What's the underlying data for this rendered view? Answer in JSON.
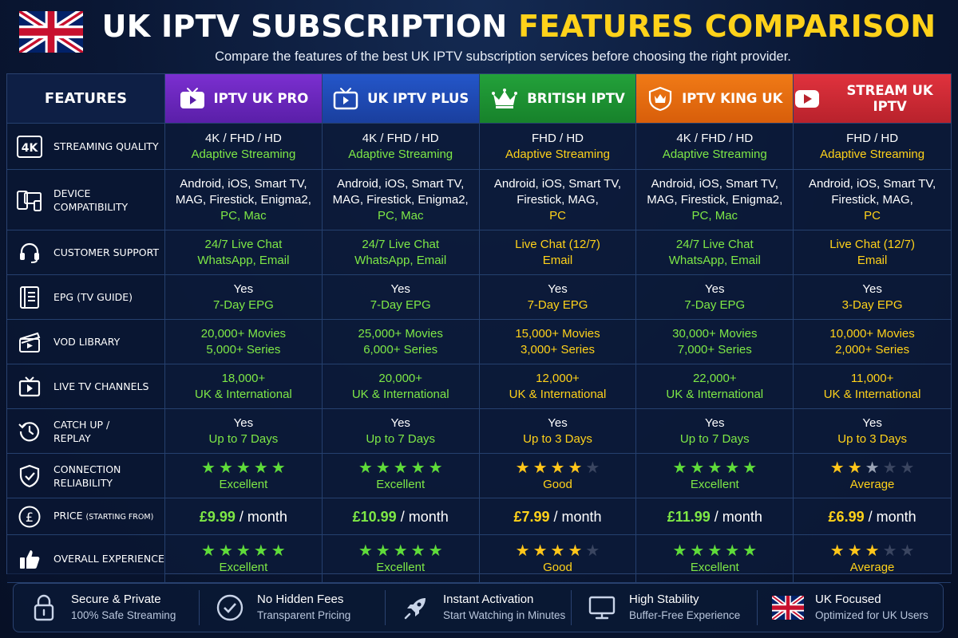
{
  "header": {
    "title_white": "UK IPTV SUBSCRIPTION ",
    "title_yellow": "FEATURES COMPARISON",
    "subtitle": "Compare the features of the best UK IPTV subscription services before choosing the right provider."
  },
  "colors": {
    "background": "#0a1734",
    "accent_yellow": "#ffd21a",
    "accent_green": "#7ee846",
    "provider_1": "#7b2fd0",
    "provider_2": "#2456c9",
    "provider_3": "#23a13a",
    "provider_4": "#f07a16",
    "provider_5": "#e0323d"
  },
  "table": {
    "features_header": "FEATURES",
    "providers": [
      {
        "name": "IPTV UK PRO",
        "icon": "tv-play-icon"
      },
      {
        "name": "UK IPTV PLUS",
        "icon": "tv-outline-play-icon"
      },
      {
        "name": "BRITISH IPTV",
        "icon": "crown-icon"
      },
      {
        "name": "IPTV KING UK",
        "icon": "crown-shield-icon"
      },
      {
        "name": "STREAM UK IPTV",
        "icon": "play-button-icon"
      }
    ],
    "features": [
      {
        "label": "STREAMING QUALITY",
        "icon": "4k-icon"
      },
      {
        "label": "DEVICE COMPATIBILITY",
        "icon": "devices-icon"
      },
      {
        "label": "CUSTOMER SUPPORT",
        "icon": "headset-icon"
      },
      {
        "label": "EPG (TV GUIDE)",
        "icon": "guide-book-icon"
      },
      {
        "label": "VOD LIBRARY",
        "icon": "clapperboard-icon"
      },
      {
        "label": "LIVE TV CHANNELS",
        "icon": "tv-icon"
      },
      {
        "label": "CATCH UP /\nREPLAY",
        "icon": "history-icon"
      },
      {
        "label": "CONNECTION\nRELIABILITY",
        "icon": "shield-check-icon"
      },
      {
        "label": "PRICE",
        "sublabel": "(STARTING FROM)",
        "icon": "pound-icon"
      },
      {
        "label": "OVERALL EXPERIENCE",
        "icon": "thumbs-up-icon"
      }
    ],
    "rows": {
      "streaming_quality": [
        {
          "l1": "4K / FHD / HD",
          "l2": "Adaptive Streaming"
        },
        {
          "l1": "4K / FHD / HD",
          "l2": "Adaptive Streaming"
        },
        {
          "l1": "FHD / HD",
          "l2": "Adaptive Streaming"
        },
        {
          "l1": "4K / FHD / HD",
          "l2": "Adaptive Streaming"
        },
        {
          "l1": "FHD / HD",
          "l2": "Adaptive Streaming"
        }
      ],
      "device_compatibility": [
        {
          "l1": "Android, iOS, Smart TV,",
          "l2": "MAG, Firestick, Enigma2,",
          "l3": "PC, Mac"
        },
        {
          "l1": "Android, iOS, Smart TV,",
          "l2": "MAG, Firestick, Enigma2,",
          "l3": "PC, Mac"
        },
        {
          "l1": "Android, iOS, Smart TV,",
          "l2": "Firestick, MAG,",
          "l3": "PC"
        },
        {
          "l1": "Android, iOS, Smart TV,",
          "l2": "MAG, Firestick, Enigma2,",
          "l3": "PC, Mac"
        },
        {
          "l1": "Android, iOS, Smart TV,",
          "l2": "Firestick, MAG,",
          "l3": "PC"
        }
      ],
      "customer_support": [
        {
          "l1": "24/7 Live Chat",
          "l2": "WhatsApp, Email"
        },
        {
          "l1": "24/7 Live Chat",
          "l2": "WhatsApp, Email"
        },
        {
          "l1": "Live Chat (12/7)",
          "l2": "Email"
        },
        {
          "l1": "24/7 Live Chat",
          "l2": "WhatsApp, Email"
        },
        {
          "l1": "Live Chat (12/7)",
          "l2": "Email"
        }
      ],
      "epg": [
        {
          "l1": "Yes",
          "l2": "7-Day EPG"
        },
        {
          "l1": "Yes",
          "l2": "7-Day EPG"
        },
        {
          "l1": "Yes",
          "l2": "7-Day EPG"
        },
        {
          "l1": "Yes",
          "l2": "7-Day EPG"
        },
        {
          "l1": "Yes",
          "l2": "3-Day EPG"
        }
      ],
      "vod_library": [
        {
          "l1": "20,000+ Movies",
          "l2": "5,000+ Series"
        },
        {
          "l1": "25,000+ Movies",
          "l2": "6,000+ Series"
        },
        {
          "l1": "15,000+ Movies",
          "l2": "3,000+ Series"
        },
        {
          "l1": "30,000+ Movies",
          "l2": "7,000+ Series"
        },
        {
          "l1": "10,000+ Movies",
          "l2": "2,000+ Series"
        }
      ],
      "live_tv": [
        {
          "l1": "18,000+",
          "l2": "UK & International"
        },
        {
          "l1": "20,000+",
          "l2": "UK & International"
        },
        {
          "l1": "12,000+",
          "l2": "UK & International"
        },
        {
          "l1": "22,000+",
          "l2": "UK & International"
        },
        {
          "l1": "11,000+",
          "l2": "UK & International"
        }
      ],
      "catch_up": [
        {
          "l1": "Yes",
          "l2": "Up to 7 Days"
        },
        {
          "l1": "Yes",
          "l2": "Up to 7 Days"
        },
        {
          "l1": "Yes",
          "l2": "Up to 3 Days"
        },
        {
          "l1": "Yes",
          "l2": "Up to 7 Days"
        },
        {
          "l1": "Yes",
          "l2": "Up to 3 Days"
        }
      ],
      "reliability": [
        {
          "stars": 5,
          "label": "Excellent"
        },
        {
          "stars": 5,
          "label": "Excellent"
        },
        {
          "stars": 4,
          "label": "Good"
        },
        {
          "stars": 5,
          "label": "Excellent"
        },
        {
          "stars": 2.5,
          "label": "Average"
        }
      ],
      "price": [
        {
          "amount": "£9.99",
          "per": " / month"
        },
        {
          "amount": "£10.99",
          "per": " / month"
        },
        {
          "amount": "£7.99",
          "per": " / month"
        },
        {
          "amount": "£11.99",
          "per": " / month"
        },
        {
          "amount": "£6.99",
          "per": " / month"
        }
      ],
      "overall": [
        {
          "stars": 5,
          "label": "Excellent"
        },
        {
          "stars": 5,
          "label": "Excellent"
        },
        {
          "stars": 4,
          "label": "Good"
        },
        {
          "stars": 5,
          "label": "Excellent"
        },
        {
          "stars": 3,
          "label": "Average"
        }
      ]
    },
    "row_styles": {
      "streaming_quality": [
        "wt",
        "gr"
      ],
      "device_compatibility": [
        "wt",
        "wt",
        "gr"
      ],
      "customer_support": [
        "gr",
        "gr"
      ],
      "epg": [
        "wt",
        "gr"
      ],
      "vod_library": [
        "gr",
        "gr"
      ],
      "live_tv": [
        "gr",
        "gr"
      ],
      "catch_up": [
        "wt",
        "gr"
      ]
    },
    "provider_accent": [
      "gr",
      "gr",
      "yl",
      "gr",
      "yl"
    ]
  },
  "footer": {
    "items": [
      {
        "title": "Secure & Private",
        "sub": "100% Safe Streaming",
        "icon": "lock-icon"
      },
      {
        "title": "No Hidden Fees",
        "sub": "Transparent Pricing",
        "icon": "check-circle-icon"
      },
      {
        "title": "Instant Activation",
        "sub": "Start Watching in Minutes",
        "icon": "rocket-icon"
      },
      {
        "title": "High Stability",
        "sub": "Buffer-Free Experience",
        "icon": "monitor-icon"
      },
      {
        "title": "UK Focused",
        "sub": "Optimized for UK Users",
        "icon": "uk-flag-icon"
      }
    ]
  }
}
